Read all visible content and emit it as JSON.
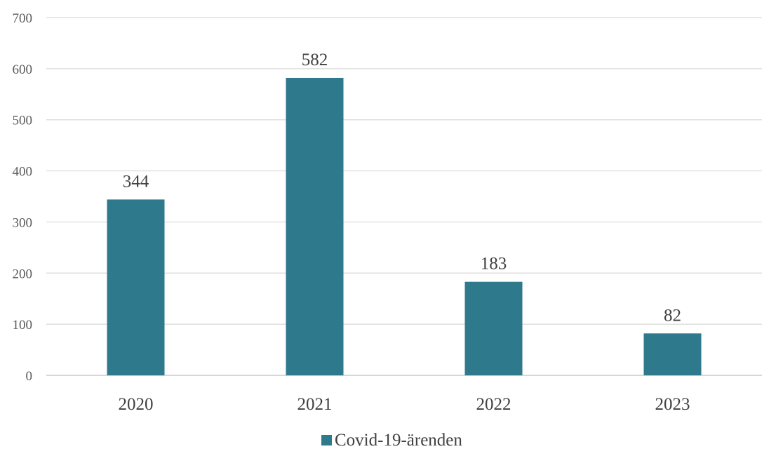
{
  "chart_data": {
    "type": "bar",
    "categories": [
      "2020",
      "2021",
      "2022",
      "2023"
    ],
    "series": [
      {
        "name": "Covid-19-ärenden",
        "values": [
          344,
          582,
          183,
          82
        ]
      }
    ],
    "ylim": [
      0,
      700
    ],
    "yticks": [
      0,
      100,
      200,
      300,
      400,
      500,
      600,
      700
    ],
    "grid": true,
    "legend_position": "bottom",
    "data_labels": true,
    "bar_color": "#2e7a8c"
  }
}
